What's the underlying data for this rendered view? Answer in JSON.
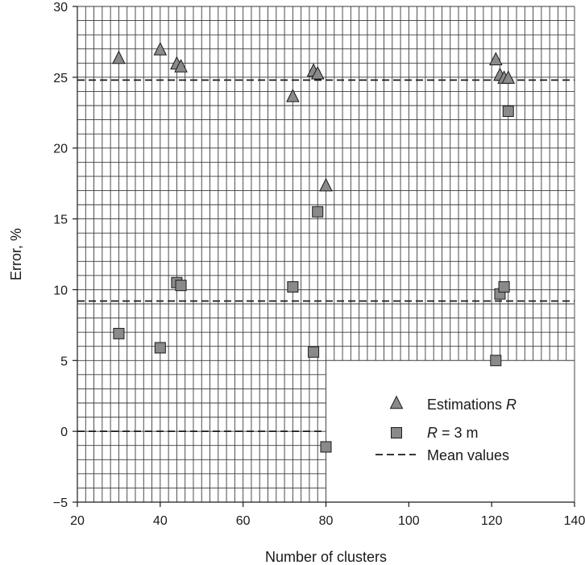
{
  "chart_data": {
    "type": "scatter",
    "xlabel": "Number of clusters",
    "ylabel": "Error, %",
    "xlim": [
      20,
      140
    ],
    "ylim": [
      -5,
      30
    ],
    "xticks": [
      20,
      40,
      60,
      80,
      100,
      120,
      140
    ],
    "yticks": [
      -5,
      0,
      5,
      10,
      15,
      20,
      25,
      30
    ],
    "grid": true,
    "legend_position": "bottom-right",
    "colors": {
      "markers": "#8a8a8a",
      "marker_edge": "#1a1a1a",
      "grid": "#3a3a3a",
      "mean_line": "#1a1a1a"
    },
    "series": [
      {
        "name": "Estimations R",
        "marker": "triangle",
        "points": [
          [
            30,
            26.3
          ],
          [
            40,
            26.9
          ],
          [
            44,
            25.9
          ],
          [
            45,
            25.7
          ],
          [
            72,
            23.6
          ],
          [
            77,
            25.4
          ],
          [
            78,
            25.2
          ],
          [
            80,
            17.3
          ],
          [
            121,
            26.2
          ],
          [
            122,
            25.1
          ],
          [
            123,
            24.9
          ],
          [
            124,
            24.9
          ]
        ]
      },
      {
        "name": "R = 3 m",
        "marker": "square",
        "points": [
          [
            30,
            6.9
          ],
          [
            40,
            5.9
          ],
          [
            44,
            10.5
          ],
          [
            45,
            10.3
          ],
          [
            72,
            10.2
          ],
          [
            77,
            5.6
          ],
          [
            78,
            15.5
          ],
          [
            80,
            -1.1
          ],
          [
            121,
            5.0
          ],
          [
            122,
            9.7
          ],
          [
            123,
            10.2
          ],
          [
            124,
            22.6
          ]
        ]
      }
    ],
    "mean_lines": {
      "name": "Mean values",
      "values": [
        24.8,
        9.2,
        0.0
      ]
    },
    "legend": {
      "entries": [
        {
          "marker": "triangle",
          "prefix": "Estimations ",
          "italic": "R",
          "suffix": ""
        },
        {
          "marker": "square",
          "prefix": "",
          "italic": "R",
          "suffix": " = 3 m"
        },
        {
          "marker": "dash",
          "prefix": "Mean values",
          "italic": "",
          "suffix": ""
        }
      ]
    }
  }
}
